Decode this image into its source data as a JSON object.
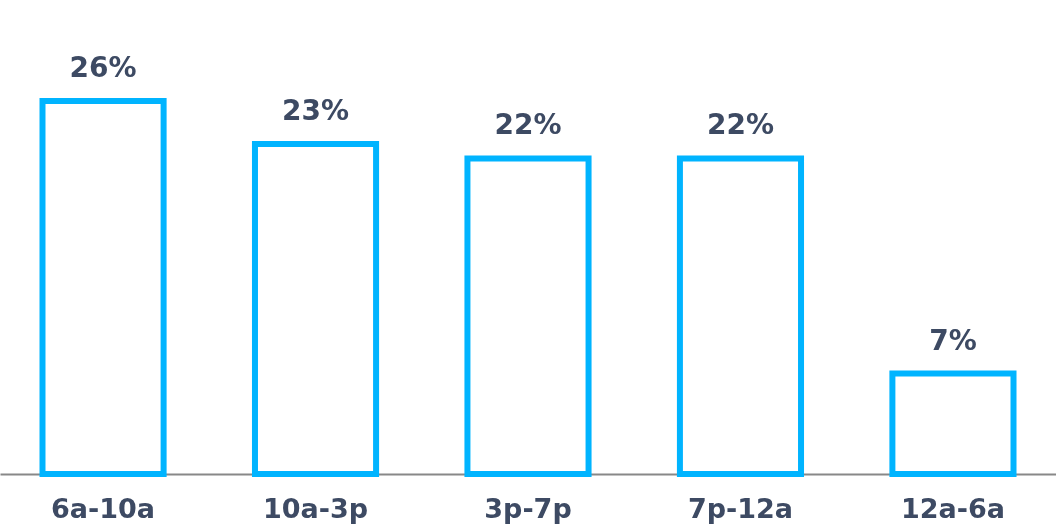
{
  "chart_data": {
    "type": "bar",
    "categories": [
      "6a-10a",
      "10a-3p",
      "3p-7p",
      "7p-12a",
      "12a-6a"
    ],
    "values": [
      26,
      23,
      22,
      22,
      7
    ],
    "value_labels": [
      "26%",
      "23%",
      "22%",
      "22%",
      "7%"
    ],
    "color": "#00b4ff"
  }
}
